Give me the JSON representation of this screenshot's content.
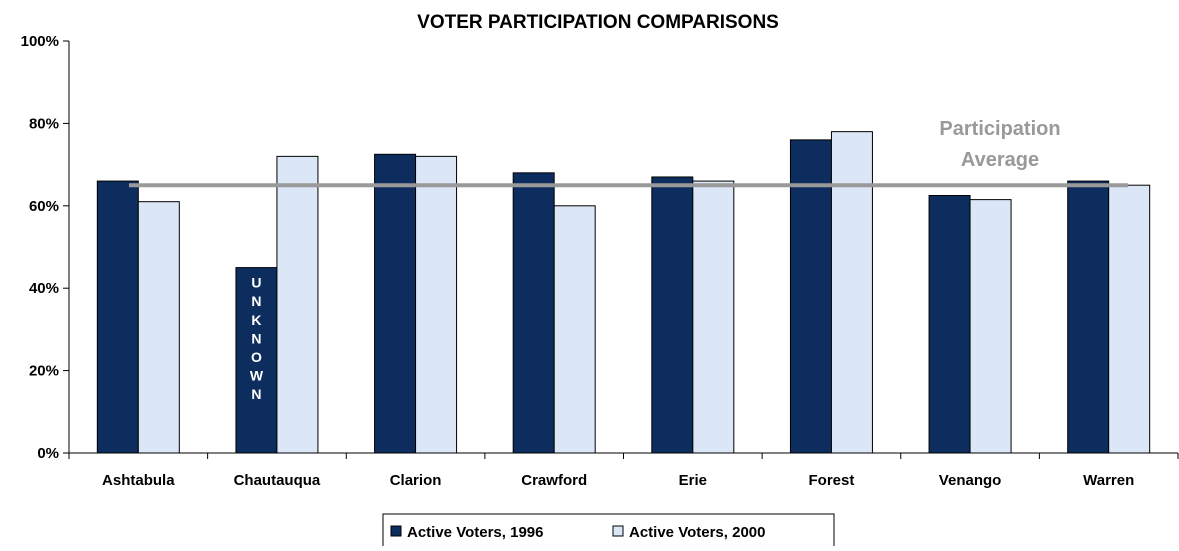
{
  "chart_data": {
    "type": "bar",
    "title": "VOTER PARTICIPATION COMPARISONS",
    "xlabel": "",
    "ylabel": "",
    "ylim": [
      0,
      100
    ],
    "yticks": [
      "0%",
      "20%",
      "40%",
      "60%",
      "80%",
      "100%"
    ],
    "categories": [
      "Ashtabula",
      "Chautauqua",
      "Clarion",
      "Crawford",
      "Erie",
      "Forest",
      "Venango",
      "Warren"
    ],
    "series": [
      {
        "name": "Active Voters, 1996",
        "color": "#0d2d5e",
        "values": [
          66,
          45,
          72.5,
          68,
          67,
          76,
          62.5,
          66
        ]
      },
      {
        "name": "Active Voters, 2000",
        "color": "#dbe7f7",
        "values": [
          61,
          72,
          72,
          60,
          66,
          78,
          61.5,
          65
        ]
      }
    ],
    "reference_line": {
      "label_line1": "Participation",
      "label_line2": "Average",
      "value": 65,
      "color": "#999999"
    },
    "bar_annotation": {
      "category": "Chautauqua",
      "series": 0,
      "text": "UNKNOWN"
    },
    "legend": {
      "placement": "bottom"
    },
    "grid": false
  }
}
